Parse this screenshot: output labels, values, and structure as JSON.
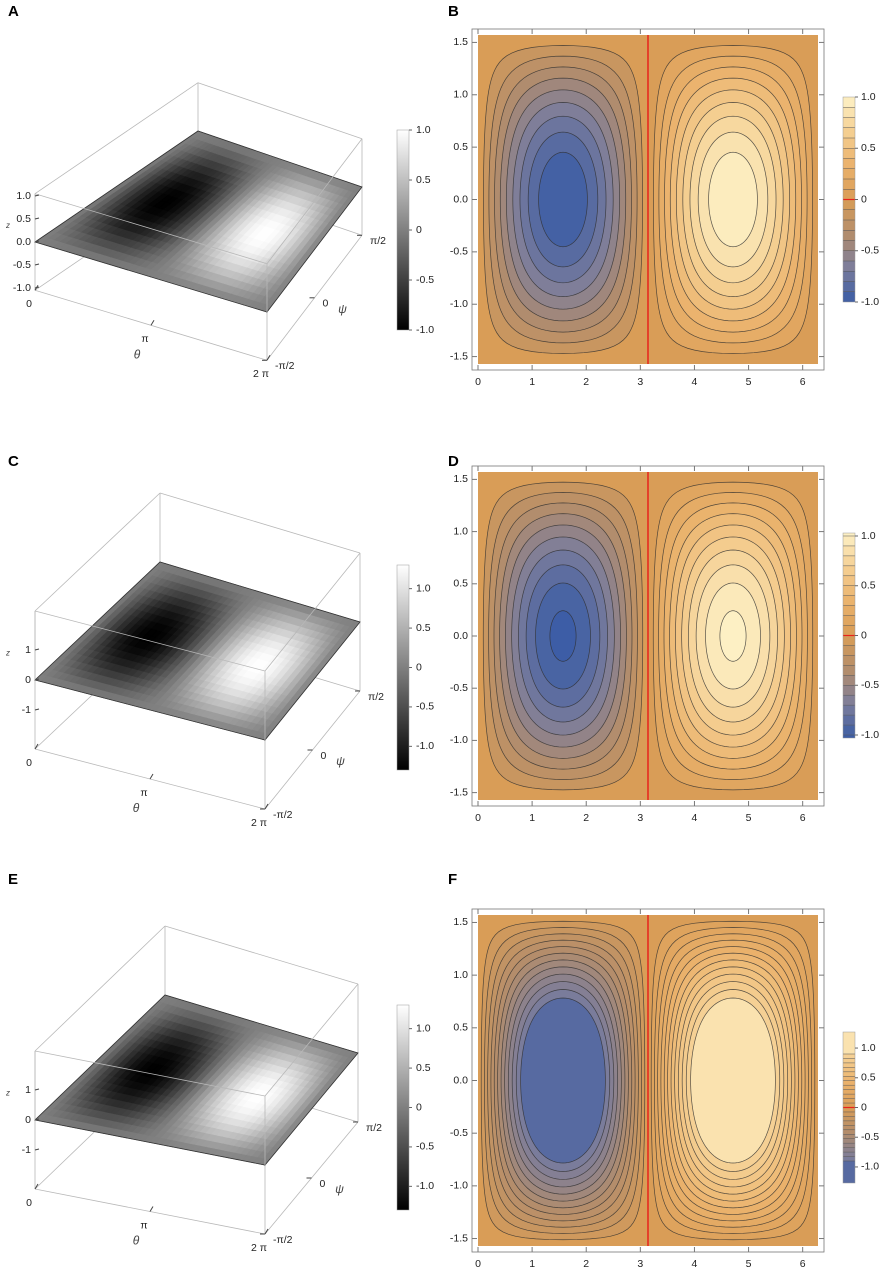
{
  "chart_data": [
    {
      "type": "surface3d",
      "title": "A",
      "xlabel": "θ",
      "ylabel": "ψ",
      "zlabel": "z",
      "xlim": [
        0,
        6.2832
      ],
      "xticks": [
        0,
        {
          "value": 3.1416,
          "label": "π"
        },
        {
          "value": 6.2832,
          "label": "2 π"
        }
      ],
      "ylim": [
        -1.5708,
        1.5708
      ],
      "yticks": [
        {
          "value": -1.5708,
          "label": "-π/2"
        },
        0,
        {
          "value": 1.5708,
          "label": "π/2"
        }
      ],
      "zlim": [
        -1.05,
        1.05
      ],
      "zticks": [
        {
          "value": 1,
          "label": "1.0"
        },
        0.5,
        {
          "value": 0,
          "label": "0.0"
        },
        -0.5,
        {
          "value": -1,
          "label": "-1.0"
        }
      ],
      "colorbar_lim": [
        -1,
        1
      ],
      "colorbar_ticks": [
        {
          "value": 1,
          "label": "1.0"
        },
        0.5,
        0,
        -0.5,
        {
          "value": -1,
          "label": "-1.0"
        }
      ],
      "colormap": [
        "#000000",
        "#ffffff"
      ]
    },
    {
      "type": "contour",
      "title": "B",
      "xlim": [
        0,
        6.2832
      ],
      "xticks": [
        0,
        1,
        2,
        3,
        4,
        5,
        6
      ],
      "ylim": [
        -1.5708,
        1.5708
      ],
      "yticks": [
        1.5,
        {
          "value": 1,
          "label": "1.0"
        },
        0.5,
        {
          "value": 0,
          "label": "0.0"
        },
        -0.5,
        {
          "value": -1,
          "label": "-1.0"
        },
        -1.5
      ],
      "colorbar_lim": [
        -1,
        1
      ],
      "colorbar_ticks": [
        {
          "value": 1,
          "label": "1.0"
        },
        0.5,
        0,
        -0.5,
        {
          "value": -1,
          "label": "-1.0"
        }
      ],
      "levels": [
        -0.9,
        -0.8,
        -0.7,
        -0.6,
        -0.5,
        -0.4,
        -0.3,
        -0.2,
        -0.1,
        0,
        0.1,
        0.2,
        0.3,
        0.4,
        0.5,
        0.6,
        0.7,
        0.8,
        0.9
      ],
      "colormap": [
        "#3a5ca6",
        "#7c7d9b",
        "#b38d6c",
        "#d99d57",
        "#eab26c",
        "#f5cf92",
        "#fdf1c6"
      ],
      "zero_line_color": "#e8231b"
    },
    {
      "type": "surface3d",
      "title": "C",
      "xlabel": "θ",
      "ylabel": "ψ",
      "zlabel": "z",
      "xlim": [
        0,
        6.2832
      ],
      "xticks": [
        0,
        {
          "value": 3.1416,
          "label": "π"
        },
        {
          "value": 6.2832,
          "label": "2 π"
        }
      ],
      "ylim": [
        -1.5708,
        1.5708
      ],
      "yticks": [
        {
          "value": -1.5708,
          "label": "-π/2"
        },
        0,
        {
          "value": 1.5708,
          "label": "π/2"
        }
      ],
      "zlim": [
        -2.3,
        2.3
      ],
      "zticks": [
        1,
        0,
        -1
      ],
      "colorbar_lim": [
        -1.3,
        1.3
      ],
      "colorbar_ticks": [
        {
          "value": 1,
          "label": "1.0"
        },
        0.5,
        0,
        -0.5,
        {
          "value": -1,
          "label": "-1.0"
        }
      ],
      "colormap": [
        "#000000",
        "#ffffff"
      ]
    },
    {
      "type": "contour",
      "title": "D",
      "xlim": [
        0,
        6.2832
      ],
      "xticks": [
        0,
        1,
        2,
        3,
        4,
        5,
        6
      ],
      "ylim": [
        -1.5708,
        1.5708
      ],
      "yticks": [
        1.5,
        {
          "value": 1,
          "label": "1.0"
        },
        0.5,
        {
          "value": 0,
          "label": "0.0"
        },
        -0.5,
        {
          "value": -1,
          "label": "-1.0"
        },
        -1.5
      ],
      "colorbar_lim": [
        -1.03,
        1.03
      ],
      "colorbar_ticks": [
        {
          "value": 1,
          "label": "1.0"
        },
        0.5,
        0,
        -0.5,
        {
          "value": -1,
          "label": "-1.0"
        }
      ],
      "levels": [
        -1,
        -0.9,
        -0.8,
        -0.7,
        -0.6,
        -0.5,
        -0.4,
        -0.3,
        -0.2,
        -0.1,
        0,
        0.1,
        0.2,
        0.3,
        0.4,
        0.5,
        0.6,
        0.7,
        0.8,
        0.9,
        1
      ],
      "colormap": [
        "#3a5ca6",
        "#7c7d9b",
        "#b38d6c",
        "#d99d57",
        "#eab26c",
        "#f5cf92",
        "#fdf1c6"
      ],
      "zero_line_color": "#e8231b"
    },
    {
      "type": "surface3d",
      "title": "E",
      "xlabel": "θ",
      "ylabel": "ψ",
      "zlabel": "z",
      "xlim": [
        0,
        6.2832
      ],
      "xticks": [
        0,
        {
          "value": 3.1416,
          "label": "π"
        },
        {
          "value": 6.2832,
          "label": "2 π"
        }
      ],
      "ylim": [
        -1.5708,
        1.5708
      ],
      "yticks": [
        {
          "value": -1.5708,
          "label": "-π/2"
        },
        0,
        {
          "value": 1.5708,
          "label": "π/2"
        }
      ],
      "zlim": [
        -2.3,
        2.3
      ],
      "zticks": [
        1,
        0,
        -1
      ],
      "colorbar_lim": [
        -1.3,
        1.3
      ],
      "colorbar_ticks": [
        {
          "value": 1,
          "label": "1.0"
        },
        0.5,
        0,
        -0.5,
        {
          "value": -1,
          "label": "-1.0"
        }
      ],
      "colormap": [
        "#000000",
        "#ffffff"
      ]
    },
    {
      "type": "contour",
      "title": "F",
      "xlim": [
        0,
        6.2832
      ],
      "xticks": [
        0,
        1,
        2,
        3,
        4,
        5,
        6
      ],
      "ylim": [
        -1.5708,
        1.5708
      ],
      "yticks": [
        1.5,
        {
          "value": 1,
          "label": "1.0"
        },
        0.5,
        {
          "value": 0,
          "label": "0.0"
        },
        -0.5,
        {
          "value": -1,
          "label": "-1.0"
        },
        -1.5
      ],
      "colorbar_lim": [
        -1.27,
        1.27
      ],
      "colorbar_ticks": [
        {
          "value": 1,
          "label": "1.0"
        },
        0.5,
        0,
        -0.5,
        {
          "value": -1,
          "label": "-1.0"
        }
      ],
      "levels": [
        -0.9,
        -0.825,
        -0.75,
        -0.675,
        -0.6,
        -0.525,
        -0.45,
        -0.375,
        -0.3,
        -0.225,
        -0.15,
        -0.075,
        0,
        0.075,
        0.15,
        0.225,
        0.3,
        0.375,
        0.45,
        0.525,
        0.6,
        0.675,
        0.75,
        0.825,
        0.9
      ],
      "colormap": [
        "#3a5ca6",
        "#7c7d9b",
        "#b38d6c",
        "#d99d57",
        "#eab26c",
        "#f5cf92",
        "#fdf1c6"
      ],
      "zero_line_color": "#e8231b"
    }
  ]
}
